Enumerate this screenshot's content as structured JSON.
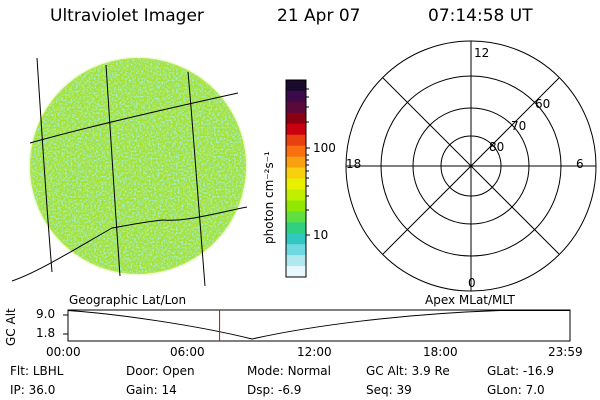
{
  "header": {
    "instrument": "Ultraviolet Imager",
    "date": "21 Apr 07",
    "time": "07:14:58 UT"
  },
  "colorbar": {
    "unit_label": "photon cm⁻²s⁻¹",
    "ticks": [
      "100",
      "10"
    ],
    "colors": [
      "#1a0a2e",
      "#3b0a4a",
      "#5a0a3a",
      "#8a0010",
      "#c80010",
      "#e84010",
      "#f87010",
      "#f8a010",
      "#f8d010",
      "#e8f000",
      "#c0f000",
      "#90e800",
      "#60e040",
      "#30d080",
      "#30c8c0",
      "#70d8e0",
      "#b0e8f0",
      "#e8f8ff"
    ]
  },
  "polar": {
    "mlt_labels": {
      "top": "12",
      "left": "18",
      "right": "6",
      "bottom": "0"
    },
    "lat_labels": [
      "60",
      "70",
      "80"
    ]
  },
  "image_labels": {
    "left": "Geographic Lat/Lon",
    "right": "Apex MLat/MLT"
  },
  "altitude_plot": {
    "ylabel": "GC Alt",
    "yticks": [
      "9.0",
      "1.8"
    ],
    "xticks": [
      "00:00",
      "06:00",
      "12:00",
      "18:00",
      "23:59"
    ],
    "marker_time_hours": 7.25,
    "marker_color": "#e00000"
  },
  "status": {
    "row1": [
      {
        "label": "Flt:",
        "value": "LBHL"
      },
      {
        "label": "Door:",
        "value": "Open"
      },
      {
        "label": "Mode:",
        "value": "Normal"
      },
      {
        "label": "GC Alt:",
        "value": "3.9 Re"
      },
      {
        "label": "GLat:",
        "value": "-16.9"
      }
    ],
    "row2": [
      {
        "label": "IP:",
        "value": "36.0"
      },
      {
        "label": "Gain:",
        "value": "14"
      },
      {
        "label": "Dsp:",
        "value": "-6.9"
      },
      {
        "label": "Seq:",
        "value": "39"
      },
      {
        "label": "GLon:",
        "value": "7.0"
      }
    ]
  }
}
